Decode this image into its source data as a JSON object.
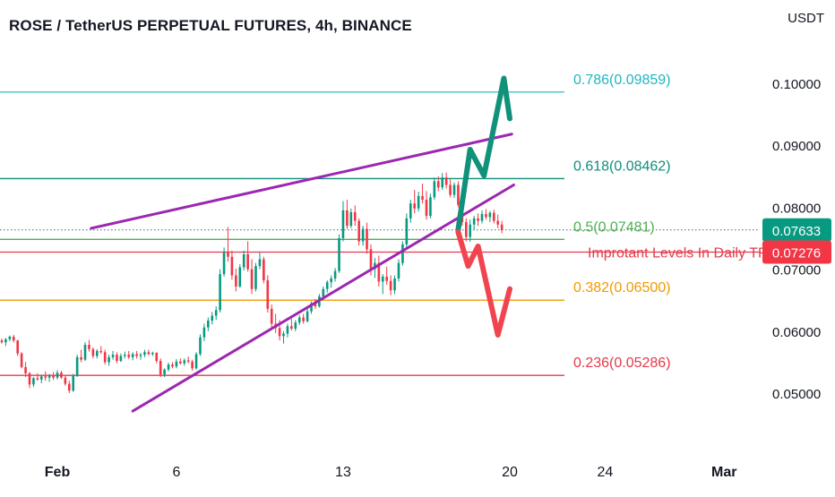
{
  "chart_data": {
    "type": "candlestick",
    "title": "ROSE / TetherUS PERPETUAL FUTURES, 4h, BINANCE",
    "price_unit": "USDT",
    "x_ticks": [
      {
        "label": "Feb",
        "x": 0
      },
      {
        "label": "6",
        "x": 30
      },
      {
        "label": "13",
        "x": 72
      },
      {
        "label": "20",
        "x": 114
      },
      {
        "label": "24",
        "x": 138
      },
      {
        "label": "Mar",
        "x": 168
      }
    ],
    "y_ticks": [
      "0.05000",
      "0.06000",
      "0.07000",
      "0.08000",
      "0.09000",
      "0.10000"
    ],
    "last_price": {
      "value": "0.07633",
      "color": "#089981"
    },
    "level_price": {
      "value": "0.07276",
      "color": "#f23645"
    },
    "fib_levels": [
      {
        "label": "0.786(0.09859)",
        "price": 0.09859,
        "color": "#22c3cf",
        "label_color": "#22b5c0"
      },
      {
        "label": "0.618(0.08462)",
        "price": 0.08462,
        "color": "#0e8f7d",
        "label_color": "#0e8f7d"
      },
      {
        "label": "0.5(0.07481)",
        "price": 0.07481,
        "color": "#4caf50",
        "label_color": "#4caf50"
      },
      {
        "label": "0.382(0.06500)",
        "price": 0.065,
        "color": "#f09a00",
        "label_color": "#f09a00"
      },
      {
        "label": "0.236(0.05286)",
        "price": 0.05286,
        "color": "#e53a4a",
        "label_color": "#e53a4a"
      }
    ],
    "annotation": {
      "label": "Improtant Levels In Daily TF",
      "price": 0.07276,
      "color": "#e53a4a"
    },
    "channel": {
      "color": "#9c27b0",
      "upper": [
        [
          8.5,
          0.0766
        ],
        [
          114.5,
          0.0918
        ]
      ],
      "lower": [
        [
          19,
          0.0471
        ],
        [
          115,
          0.0836
        ]
      ]
    },
    "arrow_up": {
      "color": "#12917a",
      "points": [
        [
          101,
          0.0764
        ],
        [
          104,
          0.0893
        ],
        [
          107.5,
          0.0851
        ],
        [
          112.5,
          0.1008
        ],
        [
          114,
          0.0943
        ]
      ]
    },
    "arrow_down": {
      "color": "#f2444f",
      "points": [
        [
          101,
          0.076
        ],
        [
          103.5,
          0.0705
        ],
        [
          106,
          0.0737
        ],
        [
          111,
          0.0594
        ],
        [
          114,
          0.0668
        ]
      ]
    },
    "candle_colors": {
      "up": "#089981",
      "down": "#f23645"
    },
    "candles": [
      [
        0.0585,
        0.0588,
        0.058,
        0.0582
      ],
      [
        0.0582,
        0.0589,
        0.0576,
        0.0587
      ],
      [
        0.0587,
        0.0593,
        0.0584,
        0.0591
      ],
      [
        0.0591,
        0.0594,
        0.0582,
        0.0585
      ],
      [
        0.0585,
        0.0586,
        0.056,
        0.0564
      ],
      [
        0.0564,
        0.0566,
        0.054,
        0.0542
      ],
      [
        0.0542,
        0.055,
        0.0526,
        0.0532
      ],
      [
        0.0532,
        0.0534,
        0.0508,
        0.0514
      ],
      [
        0.0514,
        0.0526,
        0.051,
        0.0524
      ],
      [
        0.0524,
        0.0532,
        0.052,
        0.0522
      ],
      [
        0.0522,
        0.053,
        0.0516,
        0.0527
      ],
      [
        0.0527,
        0.0535,
        0.052,
        0.0525
      ],
      [
        0.0525,
        0.0531,
        0.0518,
        0.0528
      ],
      [
        0.0528,
        0.0534,
        0.0521,
        0.0525
      ],
      [
        0.0525,
        0.0537,
        0.0522,
        0.0533
      ],
      [
        0.0533,
        0.0536,
        0.0523,
        0.0525
      ],
      [
        0.0525,
        0.0529,
        0.0512,
        0.0515
      ],
      [
        0.0515,
        0.052,
        0.05,
        0.0504
      ],
      [
        0.0504,
        0.0531,
        0.0502,
        0.0528
      ],
      [
        0.0528,
        0.0562,
        0.0526,
        0.0558
      ],
      [
        0.0558,
        0.057,
        0.055,
        0.0554
      ],
      [
        0.0554,
        0.0582,
        0.0552,
        0.0578
      ],
      [
        0.0578,
        0.0586,
        0.0567,
        0.0571
      ],
      [
        0.0571,
        0.0574,
        0.0556,
        0.056
      ],
      [
        0.056,
        0.0571,
        0.0556,
        0.0568
      ],
      [
        0.0568,
        0.0576,
        0.0563,
        0.0566
      ],
      [
        0.0566,
        0.057,
        0.0546,
        0.055
      ],
      [
        0.055,
        0.0562,
        0.0544,
        0.0558
      ],
      [
        0.0558,
        0.0568,
        0.0554,
        0.0562
      ],
      [
        0.0562,
        0.0566,
        0.0548,
        0.0552
      ],
      [
        0.0552,
        0.0564,
        0.055,
        0.056
      ],
      [
        0.056,
        0.0567,
        0.0556,
        0.0562
      ],
      [
        0.0562,
        0.0568,
        0.0555,
        0.0558
      ],
      [
        0.0558,
        0.0566,
        0.0553,
        0.0563
      ],
      [
        0.0563,
        0.0568,
        0.0556,
        0.056
      ],
      [
        0.056,
        0.0565,
        0.0554,
        0.0562
      ],
      [
        0.0562,
        0.057,
        0.0558,
        0.0566
      ],
      [
        0.0566,
        0.057,
        0.0561,
        0.0563
      ],
      [
        0.0563,
        0.0567,
        0.056,
        0.0565
      ],
      [
        0.0565,
        0.0566,
        0.0548,
        0.0552
      ],
      [
        0.0552,
        0.0556,
        0.0526,
        0.053
      ],
      [
        0.053,
        0.054,
        0.0526,
        0.0538
      ],
      [
        0.0538,
        0.0549,
        0.0535,
        0.0546
      ],
      [
        0.0546,
        0.055,
        0.054,
        0.0543
      ],
      [
        0.0543,
        0.0555,
        0.054,
        0.0551
      ],
      [
        0.0551,
        0.0556,
        0.0546,
        0.0548
      ],
      [
        0.0548,
        0.0556,
        0.0544,
        0.0553
      ],
      [
        0.0553,
        0.0559,
        0.0548,
        0.0551
      ],
      [
        0.0551,
        0.0554,
        0.0536,
        0.054
      ],
      [
        0.054,
        0.0566,
        0.0538,
        0.0563
      ],
      [
        0.0563,
        0.0595,
        0.056,
        0.059
      ],
      [
        0.059,
        0.0612,
        0.0584,
        0.0606
      ],
      [
        0.0606,
        0.0622,
        0.06,
        0.0617
      ],
      [
        0.0617,
        0.0631,
        0.0611,
        0.0625
      ],
      [
        0.0625,
        0.064,
        0.0618,
        0.0634
      ],
      [
        0.0634,
        0.07,
        0.063,
        0.0692
      ],
      [
        0.0692,
        0.0735,
        0.0688,
        0.0728
      ],
      [
        0.0728,
        0.0768,
        0.0712,
        0.072
      ],
      [
        0.072,
        0.073,
        0.0683,
        0.069
      ],
      [
        0.069,
        0.0701,
        0.0664,
        0.0672
      ],
      [
        0.0672,
        0.0708,
        0.067,
        0.0703
      ],
      [
        0.0703,
        0.073,
        0.0698,
        0.0724
      ],
      [
        0.0724,
        0.0745,
        0.0696,
        0.07
      ],
      [
        0.07,
        0.0716,
        0.066,
        0.0668
      ],
      [
        0.0668,
        0.071,
        0.0664,
        0.0705
      ],
      [
        0.0705,
        0.0728,
        0.07,
        0.0716
      ],
      [
        0.0716,
        0.072,
        0.0677,
        0.0682
      ],
      [
        0.0682,
        0.069,
        0.063,
        0.0636
      ],
      [
        0.0636,
        0.0643,
        0.0606,
        0.0612
      ],
      [
        0.0612,
        0.0628,
        0.0597,
        0.0605
      ],
      [
        0.0605,
        0.0618,
        0.0585,
        0.0592
      ],
      [
        0.0592,
        0.06,
        0.058,
        0.0596
      ],
      [
        0.0596,
        0.0612,
        0.059,
        0.0608
      ],
      [
        0.0608,
        0.062,
        0.0601,
        0.0604
      ],
      [
        0.0604,
        0.0618,
        0.06,
        0.0614
      ],
      [
        0.0614,
        0.0626,
        0.061,
        0.0622
      ],
      [
        0.0622,
        0.0628,
        0.0612,
        0.0616
      ],
      [
        0.0616,
        0.0636,
        0.0614,
        0.0632
      ],
      [
        0.0632,
        0.0648,
        0.0628,
        0.0645
      ],
      [
        0.0645,
        0.0652,
        0.0636,
        0.064
      ],
      [
        0.064,
        0.066,
        0.0638,
        0.0656
      ],
      [
        0.0656,
        0.0672,
        0.065,
        0.0668
      ],
      [
        0.0668,
        0.0682,
        0.0662,
        0.0679
      ],
      [
        0.0679,
        0.069,
        0.067,
        0.0685
      ],
      [
        0.0685,
        0.0702,
        0.068,
        0.0697
      ],
      [
        0.0697,
        0.0756,
        0.0694,
        0.075
      ],
      [
        0.075,
        0.081,
        0.0745,
        0.0795
      ],
      [
        0.0795,
        0.0812,
        0.0765,
        0.077
      ],
      [
        0.077,
        0.0798,
        0.0766,
        0.0792
      ],
      [
        0.0792,
        0.0803,
        0.077,
        0.0778
      ],
      [
        0.0778,
        0.0782,
        0.0738,
        0.0745
      ],
      [
        0.0745,
        0.077,
        0.0738,
        0.0765
      ],
      [
        0.0765,
        0.0775,
        0.0725,
        0.0732
      ],
      [
        0.0732,
        0.074,
        0.069,
        0.07
      ],
      [
        0.07,
        0.0718,
        0.0686,
        0.071
      ],
      [
        0.071,
        0.0722,
        0.0672,
        0.068
      ],
      [
        0.068,
        0.0692,
        0.066,
        0.0688
      ],
      [
        0.0688,
        0.0704,
        0.0675,
        0.0681
      ],
      [
        0.0681,
        0.069,
        0.0658,
        0.0666
      ],
      [
        0.0666,
        0.069,
        0.066,
        0.0685
      ],
      [
        0.0685,
        0.0716,
        0.068,
        0.071
      ],
      [
        0.071,
        0.0745,
        0.0706,
        0.074
      ],
      [
        0.074,
        0.079,
        0.0732,
        0.0782
      ],
      [
        0.0782,
        0.0812,
        0.0775,
        0.0806
      ],
      [
        0.0806,
        0.0828,
        0.079,
        0.0798
      ],
      [
        0.0798,
        0.0825,
        0.0793,
        0.0818
      ],
      [
        0.0818,
        0.0838,
        0.0806,
        0.0812
      ],
      [
        0.0812,
        0.0826,
        0.078,
        0.0786
      ],
      [
        0.0786,
        0.0822,
        0.0782,
        0.0816
      ],
      [
        0.0816,
        0.0848,
        0.0812,
        0.0842
      ],
      [
        0.0842,
        0.085,
        0.0826,
        0.0832
      ],
      [
        0.0832,
        0.0855,
        0.0828,
        0.0848
      ],
      [
        0.0848,
        0.0856,
        0.083,
        0.0836
      ],
      [
        0.0836,
        0.0845,
        0.0816,
        0.082
      ],
      [
        0.082,
        0.084,
        0.0815,
        0.0836
      ],
      [
        0.0836,
        0.0842,
        0.08,
        0.0804
      ],
      [
        0.0804,
        0.081,
        0.077,
        0.0776
      ],
      [
        0.0776,
        0.0782,
        0.0745,
        0.0752
      ],
      [
        0.0752,
        0.078,
        0.0744,
        0.0772
      ],
      [
        0.0772,
        0.0786,
        0.0764,
        0.0782
      ],
      [
        0.0782,
        0.079,
        0.077,
        0.0778
      ],
      [
        0.0778,
        0.0795,
        0.0774,
        0.0789
      ],
      [
        0.0789,
        0.0797,
        0.078,
        0.0784
      ],
      [
        0.0784,
        0.0794,
        0.0776,
        0.0791
      ],
      [
        0.0791,
        0.0796,
        0.0774,
        0.0778
      ],
      [
        0.0778,
        0.0788,
        0.0766,
        0.0772
      ],
      [
        0.0772,
        0.0778,
        0.0758,
        0.0763
      ]
    ]
  }
}
